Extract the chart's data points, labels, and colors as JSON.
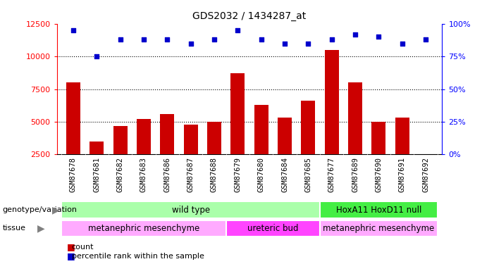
{
  "title": "GDS2032 / 1434287_at",
  "samples": [
    "GSM87678",
    "GSM87681",
    "GSM87682",
    "GSM87683",
    "GSM87686",
    "GSM87687",
    "GSM87688",
    "GSM87679",
    "GSM87680",
    "GSM87684",
    "GSM87685",
    "GSM87677",
    "GSM87689",
    "GSM87690",
    "GSM87691",
    "GSM87692"
  ],
  "counts": [
    8000,
    3500,
    4700,
    5200,
    5600,
    4800,
    5000,
    8700,
    6300,
    5300,
    6600,
    10500,
    8000,
    5000,
    5300,
    2500
  ],
  "percentile_ranks": [
    95,
    75,
    88,
    88,
    88,
    85,
    88,
    95,
    88,
    85,
    85,
    88,
    92,
    90,
    85,
    88
  ],
  "bar_color": "#cc0000",
  "dot_color": "#0000cc",
  "ylim_left": [
    2500,
    12500
  ],
  "ylim_right": [
    0,
    100
  ],
  "yticks_left": [
    2500,
    5000,
    7500,
    10000,
    12500
  ],
  "yticks_right": [
    0,
    25,
    50,
    75,
    100
  ],
  "grid_lines": [
    5000,
    7500,
    10000
  ],
  "genotype_groups": [
    {
      "label": "wild type",
      "start": 0,
      "end": 11,
      "color": "#aaffaa"
    },
    {
      "label": "HoxA11 HoxD11 null",
      "start": 11,
      "end": 16,
      "color": "#44ee44"
    }
  ],
  "tissue_groups": [
    {
      "label": "metanephric mesenchyme",
      "start": 0,
      "end": 7,
      "color": "#ffaaff"
    },
    {
      "label": "ureteric bud",
      "start": 7,
      "end": 11,
      "color": "#ff44ff"
    },
    {
      "label": "metanephric mesenchyme",
      "start": 11,
      "end": 16,
      "color": "#ffaaff"
    }
  ],
  "legend_items": [
    {
      "label": "count",
      "color": "#cc0000"
    },
    {
      "label": "percentile rank within the sample",
      "color": "#0000cc"
    }
  ],
  "background_color": "#ffffff",
  "xticklabel_bg": "#cccccc",
  "left_label_geno": "genotype/variation",
  "left_label_tissue": "tissue"
}
